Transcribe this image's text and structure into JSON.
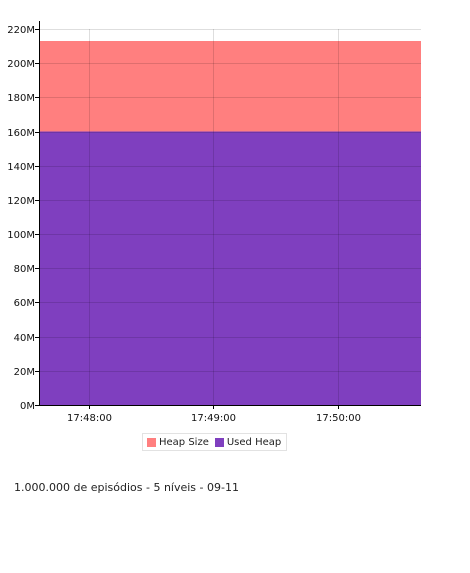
{
  "chart_data": {
    "type": "area",
    "x": [
      "17:47:36",
      "17:48:00",
      "17:49:00",
      "17:50:00",
      "17:50:40"
    ],
    "x_tick_labels": [
      "17:48:00",
      "17:49:00",
      "17:50:00"
    ],
    "y_tick_labels": [
      "0M",
      "20M",
      "40M",
      "60M",
      "80M",
      "100M",
      "120M",
      "140M",
      "160M",
      "180M",
      "200M",
      "220M"
    ],
    "ylim": [
      0,
      220
    ],
    "grid": true,
    "legend_position": "bottom",
    "series": [
      {
        "name": "Heap Size",
        "color": "#ff7f7f",
        "values": [
          213,
          213,
          213,
          213,
          213
        ]
      },
      {
        "name": "Used Heap",
        "color": "#7f3fbf",
        "values": [
          160,
          160,
          160,
          160,
          160
        ]
      }
    ],
    "title": "",
    "xlabel": "",
    "ylabel": ""
  },
  "legend": {
    "items": [
      {
        "label": "Heap Size",
        "color": "#ff7f7f"
      },
      {
        "label": "Used Heap",
        "color": "#7f3fbf"
      }
    ]
  },
  "caption": "1.000.000 de episódios - 5 níveis - 09-11"
}
